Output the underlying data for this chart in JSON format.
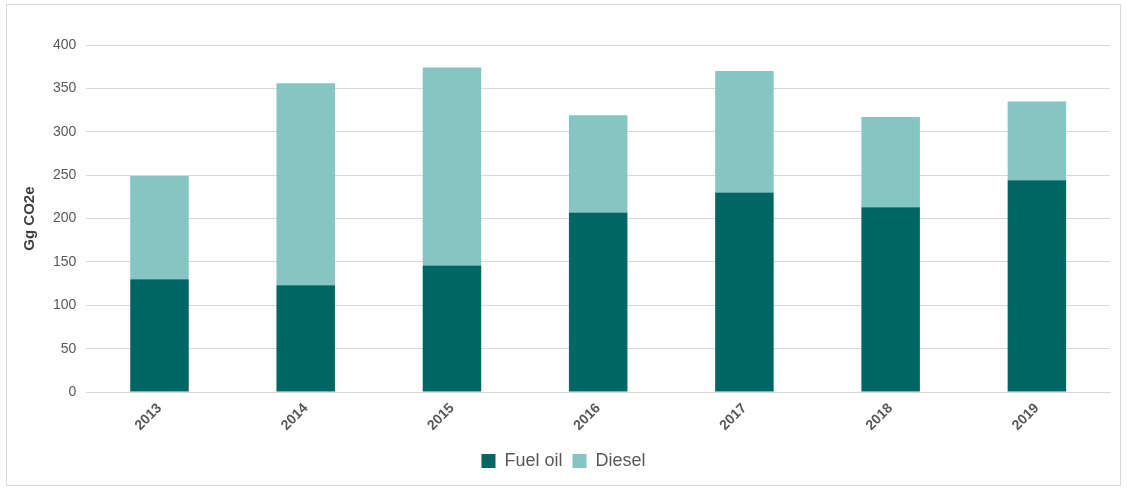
{
  "chart_data": {
    "type": "bar",
    "ylabel": "Gg CO2e",
    "categories": [
      "2013",
      "2014",
      "2015",
      "2016",
      "2017",
      "2018",
      "2019"
    ],
    "series": [
      {
        "name": "Fuel oil",
        "color": "#006663",
        "values": [
          130,
          123,
          146,
          207,
          230,
          213,
          244
        ]
      },
      {
        "name": "Diesel",
        "color": "#85c6c3",
        "values": [
          119,
          233,
          228,
          112,
          140,
          104,
          91
        ]
      }
    ],
    "stacked": true,
    "ylim": [
      0,
      400
    ],
    "yticks": [
      0,
      50,
      100,
      150,
      200,
      250,
      300,
      350,
      400
    ],
    "grid": "y",
    "legend": "bottom"
  }
}
